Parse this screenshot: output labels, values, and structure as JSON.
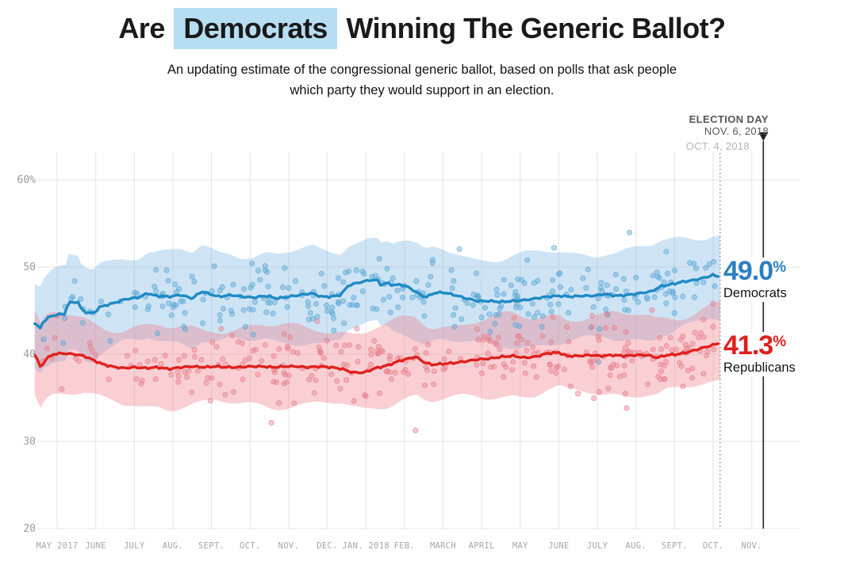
{
  "header": {
    "title_pre": "Are",
    "title_highlight": "Democrats",
    "title_post": "Winning The Generic Ballot?",
    "subtitle_line1": "An updating estimate of the congressional generic ballot, based on polls that ask people",
    "subtitle_line2": "which party they would support in an election."
  },
  "annotations": {
    "election_day_label": "ELECTION DAY",
    "election_day_date": "NOV. 6, 2018",
    "current_date": "OCT. 4, 2018"
  },
  "legend": {
    "dem": {
      "value": "49.0",
      "unit": "%",
      "label": "Democrats"
    },
    "rep": {
      "value": "41.3",
      "unit": "%",
      "label": "Republicans"
    }
  },
  "colors": {
    "title_highlight_bg": "#b7ddf3",
    "dem_line": "#1e8ac4",
    "dem_band": "rgba(125,185,230,0.38)",
    "dem_dot": "#5da8d4",
    "rep_line": "#e0201d",
    "rep_band": "rgba(240,130,140,0.38)",
    "rep_dot": "#e8808d",
    "grid": "#e4e4e4",
    "axis_text": "#a6a6a6",
    "annotation_dark": "#222222",
    "annotation_dotted": "#888888"
  },
  "chart_data": {
    "type": "line",
    "title": "Are Democrats Winning The Generic Ballot?",
    "x_axis": {
      "unit": "months since May 1, 2017",
      "tick_labels": [
        "MAY 2017",
        "JUNE",
        "JULY",
        "AUG.",
        "SEPT.",
        "OCT.",
        "NOV.",
        "DEC.",
        "JAN. 2018",
        "FEB.",
        "MARCH",
        "APRIL",
        "MAY",
        "JUNE",
        "JULY",
        "AUG.",
        "SEPT.",
        "OCT.",
        "NOV."
      ],
      "range": [
        -0.7,
        18.6
      ],
      "grid": true
    },
    "y_axis": {
      "tick_labels": [
        "60%",
        "50",
        "40",
        "30",
        "20"
      ],
      "tick_values": [
        60,
        50,
        40,
        30,
        20
      ],
      "range": [
        20,
        60
      ],
      "unit": "percent support",
      "grid": true
    },
    "series": [
      {
        "name": "Democrats",
        "current_value": 49.0,
        "band_upper_offset": 5.0,
        "band_lower_offset": 5.2,
        "points": [
          [
            -0.58,
            43.6
          ],
          [
            -0.45,
            42.9
          ],
          [
            -0.35,
            43.8
          ],
          [
            -0.15,
            44.4
          ],
          [
            0.1,
            44.6
          ],
          [
            0.22,
            44.6
          ],
          [
            0.28,
            45.9
          ],
          [
            0.55,
            46.0
          ],
          [
            0.62,
            45.2
          ],
          [
            0.75,
            44.8
          ],
          [
            0.95,
            44.7
          ],
          [
            1.1,
            45.4
          ],
          [
            1.25,
            45.6
          ],
          [
            1.5,
            45.9
          ],
          [
            1.75,
            46.3
          ],
          [
            2.1,
            46.5
          ],
          [
            2.35,
            47.0
          ],
          [
            2.55,
            46.7
          ],
          [
            2.9,
            46.6
          ],
          [
            3.2,
            46.8
          ],
          [
            3.5,
            46.4
          ],
          [
            3.75,
            47.2
          ],
          [
            3.95,
            46.9
          ],
          [
            4.2,
            46.6
          ],
          [
            4.5,
            46.8
          ],
          [
            4.8,
            46.6
          ],
          [
            5.1,
            46.5
          ],
          [
            5.4,
            46.7
          ],
          [
            5.7,
            46.4
          ],
          [
            6.0,
            46.6
          ],
          [
            6.3,
            46.8
          ],
          [
            6.6,
            47.0
          ],
          [
            6.85,
            46.6
          ],
          [
            7.1,
            46.6
          ],
          [
            7.35,
            46.8
          ],
          [
            7.55,
            47.9
          ],
          [
            7.8,
            48.2
          ],
          [
            8.1,
            48.5
          ],
          [
            8.3,
            48.5
          ],
          [
            8.4,
            47.9
          ],
          [
            8.55,
            48.2
          ],
          [
            8.7,
            47.9
          ],
          [
            8.9,
            48.0
          ],
          [
            9.1,
            47.7
          ],
          [
            9.35,
            47.0
          ],
          [
            9.55,
            46.5
          ],
          [
            9.75,
            47.0
          ],
          [
            10.0,
            47.1
          ],
          [
            10.3,
            46.8
          ],
          [
            10.6,
            46.4
          ],
          [
            10.9,
            46.1
          ],
          [
            11.2,
            46.1
          ],
          [
            11.5,
            46.0
          ],
          [
            11.8,
            46.1
          ],
          [
            12.1,
            46.2
          ],
          [
            12.4,
            46.4
          ],
          [
            12.7,
            46.6
          ],
          [
            13.0,
            46.7
          ],
          [
            13.3,
            46.6
          ],
          [
            13.6,
            46.7
          ],
          [
            13.9,
            46.7
          ],
          [
            14.2,
            46.9
          ],
          [
            14.5,
            46.7
          ],
          [
            14.8,
            46.8
          ],
          [
            15.1,
            47.0
          ],
          [
            15.4,
            47.2
          ],
          [
            15.65,
            47.8
          ],
          [
            15.9,
            48.0
          ],
          [
            16.2,
            48.3
          ],
          [
            16.5,
            48.5
          ],
          [
            16.8,
            48.8
          ],
          [
            17.0,
            49.1
          ],
          [
            17.1,
            48.9
          ],
          [
            17.18,
            49.0
          ]
        ]
      },
      {
        "name": "Republicans",
        "current_value": 41.3,
        "band_upper_offset": 4.5,
        "band_lower_offset": 4.3,
        "points": [
          [
            -0.58,
            40.0
          ],
          [
            -0.5,
            39.2
          ],
          [
            -0.42,
            38.4
          ],
          [
            -0.3,
            39.4
          ],
          [
            -0.1,
            40.0
          ],
          [
            0.15,
            40.1
          ],
          [
            0.45,
            40.0
          ],
          [
            0.7,
            39.8
          ],
          [
            0.95,
            39.3
          ],
          [
            1.15,
            38.9
          ],
          [
            1.4,
            38.6
          ],
          [
            1.7,
            38.4
          ],
          [
            2.0,
            38.5
          ],
          [
            2.3,
            38.4
          ],
          [
            2.6,
            38.5
          ],
          [
            2.9,
            38.3
          ],
          [
            3.2,
            38.5
          ],
          [
            3.5,
            38.6
          ],
          [
            3.8,
            38.5
          ],
          [
            4.1,
            38.6
          ],
          [
            4.4,
            38.5
          ],
          [
            4.7,
            38.5
          ],
          [
            5.0,
            38.6
          ],
          [
            5.3,
            38.6
          ],
          [
            5.6,
            38.5
          ],
          [
            5.9,
            38.6
          ],
          [
            6.2,
            38.6
          ],
          [
            6.5,
            38.5
          ],
          [
            6.8,
            38.6
          ],
          [
            7.1,
            38.5
          ],
          [
            7.4,
            38.3
          ],
          [
            7.65,
            37.9
          ],
          [
            7.95,
            37.9
          ],
          [
            8.25,
            38.4
          ],
          [
            8.55,
            38.7
          ],
          [
            8.85,
            39.2
          ],
          [
            9.1,
            39.5
          ],
          [
            9.3,
            39.7
          ],
          [
            9.5,
            39.1
          ],
          [
            9.7,
            38.8
          ],
          [
            10.0,
            38.9
          ],
          [
            10.3,
            39.0
          ],
          [
            10.6,
            39.2
          ],
          [
            10.9,
            39.4
          ],
          [
            11.2,
            39.5
          ],
          [
            11.5,
            39.7
          ],
          [
            11.8,
            39.8
          ],
          [
            12.1,
            39.6
          ],
          [
            12.4,
            39.7
          ],
          [
            12.7,
            40.1
          ],
          [
            13.0,
            40.2
          ],
          [
            13.2,
            39.8
          ],
          [
            13.5,
            39.8
          ],
          [
            13.8,
            39.9
          ],
          [
            14.1,
            39.8
          ],
          [
            14.4,
            39.9
          ],
          [
            14.7,
            39.8
          ],
          [
            15.0,
            39.9
          ],
          [
            15.3,
            39.9
          ],
          [
            15.55,
            39.6
          ],
          [
            15.8,
            39.9
          ],
          [
            16.1,
            40.0
          ],
          [
            16.4,
            40.3
          ],
          [
            16.7,
            40.7
          ],
          [
            16.95,
            41.0
          ],
          [
            17.18,
            41.3
          ]
        ]
      }
    ],
    "scatter": {
      "description": "individual poll results as semi-transparent dots around each trend line",
      "dem_count": 290,
      "rep_count": 300,
      "jitter": 3.6,
      "outlier_rate": 0.05,
      "seed_dem": 421,
      "seed_rep": 97,
      "x_min": -0.55,
      "x_max": 17.1
    },
    "annotation_lines": {
      "current_date_month": 17.18,
      "election_day_month": 18.3
    },
    "legend_position": "right"
  }
}
